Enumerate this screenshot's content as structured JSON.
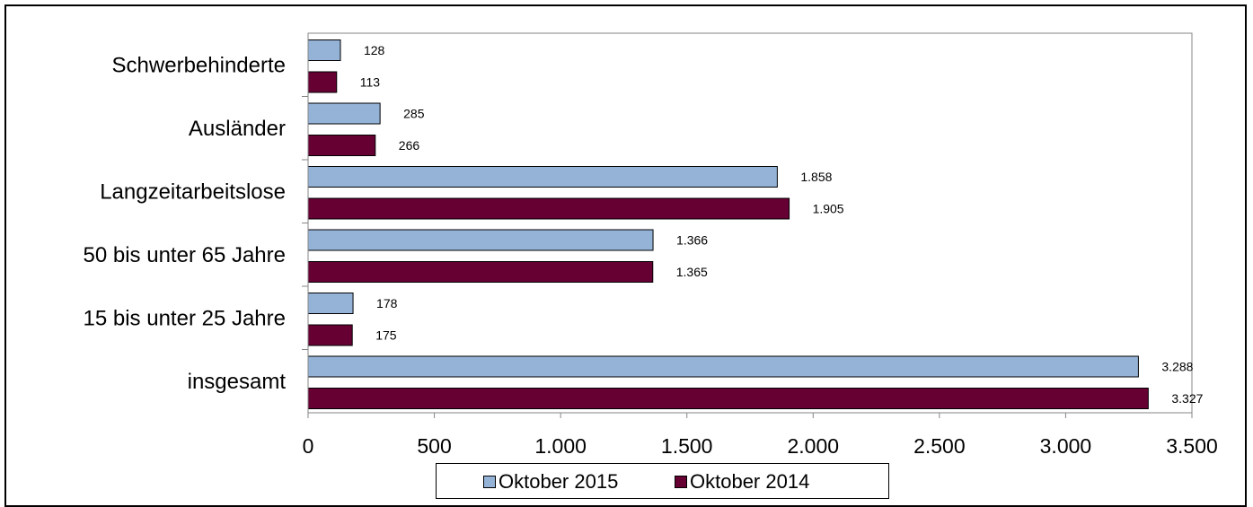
{
  "chart_data": {
    "type": "bar",
    "orientation": "horizontal",
    "categories": [
      "Schwerbehinderte",
      "Ausländer",
      "Langzeitarbeitslose",
      "50 bis unter 65 Jahre",
      "15 bis unter 25 Jahre",
      "insgesamt"
    ],
    "series": [
      {
        "name": "Oktober 2015",
        "values": [
          128,
          285,
          1858,
          1366,
          178,
          3288
        ],
        "labels": [
          "128",
          "285",
          "1.858",
          "1.366",
          "178",
          "3.288"
        ],
        "color": "#95b3d7"
      },
      {
        "name": "Oktober 2014",
        "values": [
          113,
          266,
          1905,
          1365,
          175,
          3327
        ],
        "labels": [
          "113",
          "266",
          "1.905",
          "1.365",
          "175",
          "3.327"
        ],
        "color": "#660033"
      }
    ],
    "xlim": [
      0,
      3500
    ],
    "xticks": [
      0,
      500,
      1000,
      1500,
      2000,
      2500,
      3000,
      3500
    ],
    "xtick_labels": [
      "0",
      "500",
      "1.000",
      "1.500",
      "2.000",
      "2.500",
      "3.000",
      "3.500"
    ],
    "legend_position": "bottom",
    "grid": false
  }
}
